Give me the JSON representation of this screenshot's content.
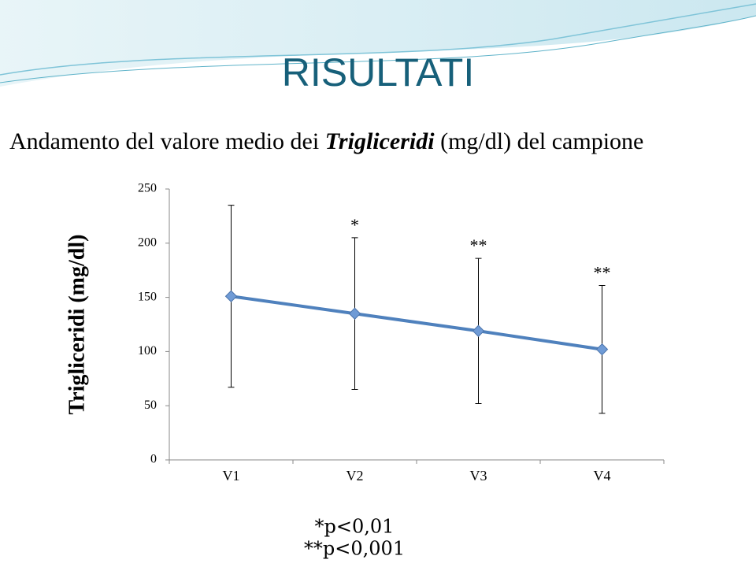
{
  "chart_data": {
    "type": "line",
    "title": "RISULTATI",
    "subtitle_parts": [
      "Andamento del valore medio dei ",
      "Trigliceridi",
      " (mg/dl) del campione"
    ],
    "y_label": "Trigliceridi (mg/dl)",
    "categories": [
      "V1",
      "V2",
      "V3",
      "V4"
    ],
    "values": [
      151,
      135,
      119,
      102
    ],
    "errors": [
      84,
      70,
      67,
      59
    ],
    "significance": [
      null,
      "*",
      "**",
      "**"
    ],
    "color": "#4f81bd",
    "ylim": [
      0,
      250
    ],
    "yticks": [
      0,
      50,
      100,
      150,
      200,
      250
    ],
    "footnotes": [
      "*p<0,01",
      "**p<0,001"
    ]
  }
}
